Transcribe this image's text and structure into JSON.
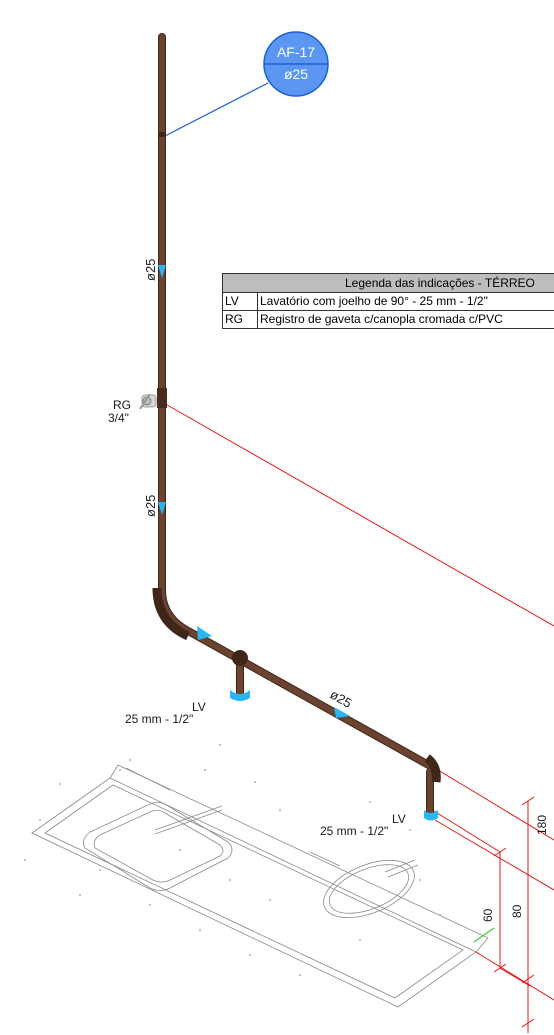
{
  "tag": {
    "top": "AF-17",
    "bottom": "ø25"
  },
  "pipe_labels": {
    "upper": "ø25",
    "middle": "ø25",
    "horizontal": "ø25"
  },
  "valve": {
    "code": "RG",
    "size": "3/4\""
  },
  "fixtures": [
    {
      "code": "LV",
      "size": "25 mm - 1/2\""
    },
    {
      "code": "LV",
      "size": "25 mm - 1/2\""
    }
  ],
  "dimensions": {
    "d180": "180",
    "d80": "80",
    "d60": "60"
  },
  "legend": {
    "title": "Legenda das indicações - TÉRREO",
    "rows": [
      {
        "code": "LV",
        "desc": "Lavatório com joelho de 90° - 25 mm - 1/2\""
      },
      {
        "code": "RG",
        "desc": "Registro de gaveta c/canopla cromada c/PVC"
      }
    ]
  },
  "colors": {
    "pipe": "#6b4330",
    "pipe_dark": "#3f2619",
    "water": "#29b6f6",
    "tag_fill": "#4f8ff0",
    "tag_stroke": "#1f5fd0",
    "dim_red": "#e01818",
    "drawing": "#777777"
  }
}
